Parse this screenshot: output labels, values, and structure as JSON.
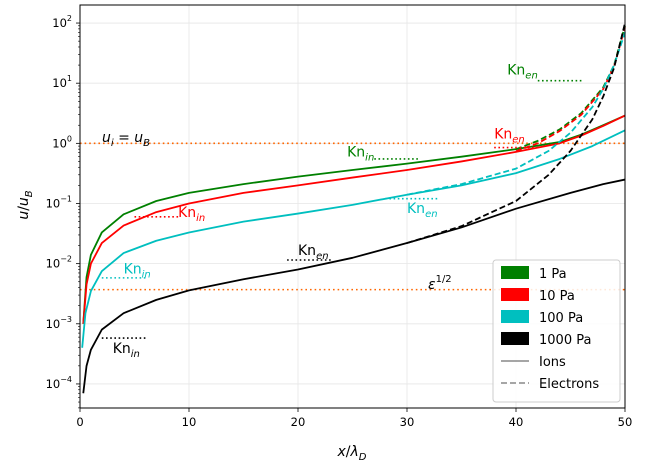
{
  "chart_data": {
    "type": "line",
    "title": "",
    "xlabel": "x/λD",
    "ylabel": "u/uB",
    "xlim": [
      0,
      50
    ],
    "ylim_log10": [
      -4.4,
      2.3
    ],
    "yscale": "log",
    "grid": true,
    "legend_position": "lower-right",
    "x_ticks": [
      0,
      10,
      20,
      30,
      40,
      50
    ],
    "y_ticks_exp": [
      -4,
      -3,
      -2,
      -1,
      0,
      1,
      2
    ],
    "pressure_series": [
      {
        "name": "1 Pa",
        "color": "#008000"
      },
      {
        "name": "10 Pa",
        "color": "#ff0000"
      },
      {
        "name": "100 Pa",
        "color": "#00bfbf"
      },
      {
        "name": "1000 Pa",
        "color": "#000000"
      }
    ],
    "style_entries": [
      {
        "name": "Ions",
        "style": "solid"
      },
      {
        "name": "Electrons",
        "style": "dashed"
      }
    ],
    "series": [
      {
        "pressure": "1 Pa",
        "kind": "ions",
        "color": "#008000",
        "x": [
          0.3,
          0.6,
          1,
          2,
          4,
          7,
          10,
          15,
          20,
          25,
          30,
          35,
          40,
          44,
          46,
          48,
          50
        ],
        "y": [
          0.001,
          0.006,
          0.014,
          0.033,
          0.066,
          0.11,
          0.15,
          0.21,
          0.28,
          0.36,
          0.46,
          0.6,
          0.8,
          1.05,
          1.4,
          2.0,
          2.9
        ]
      },
      {
        "pressure": "1 Pa",
        "kind": "electrons",
        "color": "#008000",
        "x": [
          40,
          42,
          44,
          46,
          48,
          49,
          50
        ],
        "y": [
          0.8,
          1.1,
          1.7,
          3.2,
          8.5,
          20,
          90
        ]
      },
      {
        "pressure": "10 Pa",
        "kind": "ions",
        "color": "#ff0000",
        "x": [
          0.3,
          0.6,
          1,
          2,
          4,
          7,
          10,
          15,
          20,
          25,
          30,
          35,
          40,
          44,
          46,
          48,
          50
        ],
        "y": [
          0.001,
          0.0045,
          0.01,
          0.022,
          0.043,
          0.072,
          0.1,
          0.15,
          0.2,
          0.27,
          0.36,
          0.5,
          0.72,
          1.0,
          1.35,
          1.95,
          2.9
        ]
      },
      {
        "pressure": "10 Pa",
        "kind": "electrons",
        "color": "#ff0000",
        "x": [
          40,
          42,
          44,
          46,
          48,
          49,
          50
        ],
        "y": [
          0.74,
          1.0,
          1.6,
          3.0,
          8.0,
          19,
          85
        ]
      },
      {
        "pressure": "100 Pa",
        "kind": "ions",
        "color": "#00bfbf",
        "x": [
          0.2,
          0.5,
          1,
          2,
          4,
          7,
          10,
          15,
          20,
          25,
          30,
          35,
          40,
          44,
          47,
          50
        ],
        "y": [
          0.0004,
          0.0015,
          0.0035,
          0.0075,
          0.015,
          0.024,
          0.033,
          0.05,
          0.068,
          0.095,
          0.14,
          0.2,
          0.32,
          0.55,
          0.9,
          1.65
        ]
      },
      {
        "pressure": "100 Pa",
        "kind": "electrons",
        "color": "#00bfbf",
        "x": [
          30,
          35,
          40,
          43,
          45,
          47,
          48,
          49,
          50
        ],
        "y": [
          0.14,
          0.21,
          0.38,
          0.75,
          1.5,
          4.0,
          8.0,
          20,
          70
        ]
      },
      {
        "pressure": "1000 Pa",
        "kind": "ions",
        "color": "#000000",
        "x": [
          0.3,
          0.6,
          1,
          2,
          4,
          7,
          10,
          15,
          20,
          25,
          30,
          35,
          40,
          45,
          48,
          50
        ],
        "y": [
          7e-05,
          0.0002,
          0.00037,
          0.0008,
          0.0015,
          0.0025,
          0.0036,
          0.0055,
          0.008,
          0.0125,
          0.022,
          0.04,
          0.082,
          0.15,
          0.21,
          0.25
        ]
      },
      {
        "pressure": "1000 Pa",
        "kind": "electrons",
        "color": "#000000",
        "x": [
          30,
          35,
          40,
          43,
          45,
          47,
          48,
          49,
          50
        ],
        "y": [
          0.022,
          0.042,
          0.11,
          0.3,
          0.75,
          2.5,
          6.0,
          18,
          100
        ]
      }
    ],
    "reference_lines": [
      {
        "label": "u_i = u_B",
        "y": 1.0,
        "color": "#ff6600"
      },
      {
        "label": "ε^1/2",
        "y": 0.0037,
        "color": "#ff6600"
      }
    ],
    "knudsen_markers": [
      {
        "color": "#008000",
        "sub": "en",
        "x1": 42,
        "x2": 46,
        "y": 11,
        "tx": 42,
        "ty": 14,
        "anchor": "end"
      },
      {
        "color": "#008000",
        "sub": "in",
        "x1": 27,
        "x2": 31,
        "y": 0.55,
        "tx": 27,
        "ty": 0.6,
        "anchor": "end"
      },
      {
        "color": "#ff0000",
        "sub": "en",
        "x1": 38,
        "x2": 42,
        "y": 0.85,
        "tx": 38,
        "ty": 1.2,
        "anchor": "start"
      },
      {
        "color": "#ff0000",
        "sub": "in",
        "x1": 5,
        "x2": 9,
        "y": 0.06,
        "tx": 9,
        "ty": 0.06,
        "anchor": "start"
      },
      {
        "color": "#00bfbf",
        "sub": "en",
        "x1": 28,
        "x2": 33,
        "y": 0.12,
        "tx": 30,
        "ty": 0.07,
        "anchor": "start"
      },
      {
        "color": "#00bfbf",
        "sub": "in",
        "x1": 2,
        "x2": 6,
        "y": 0.0058,
        "tx": 4,
        "ty": 0.0068,
        "anchor": "start"
      },
      {
        "color": "#000000",
        "sub": "en",
        "x1": 19,
        "x2": 23,
        "y": 0.0115,
        "tx": 20,
        "ty": 0.014,
        "anchor": "start"
      },
      {
        "color": "#000000",
        "sub": "in",
        "x1": 2,
        "x2": 6,
        "y": 0.00058,
        "tx": 3,
        "ty": 0.00033,
        "anchor": "start"
      }
    ]
  }
}
